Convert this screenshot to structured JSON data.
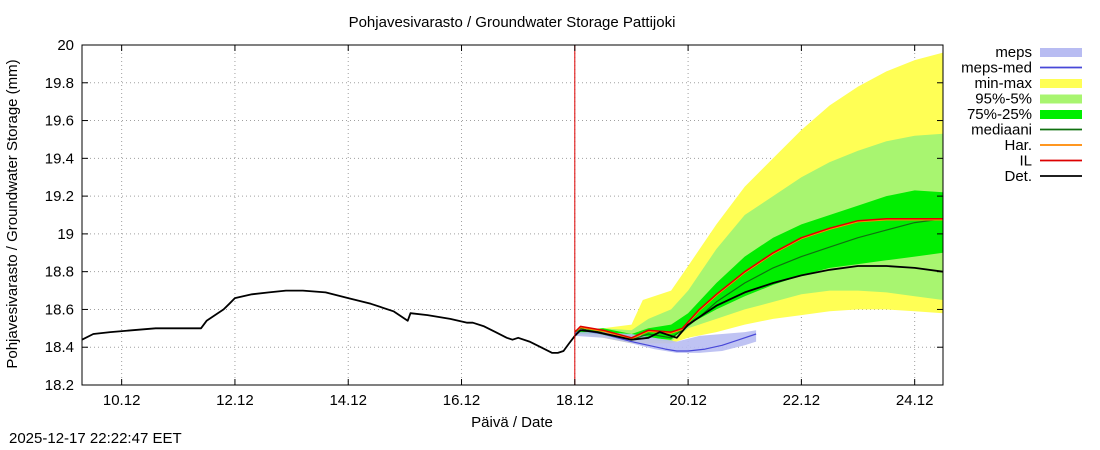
{
  "timestamp": "2025-12-17 22:22:47 EET",
  "chart_data": {
    "type": "line",
    "title": "Pohjavesivarasto / Groundwater Storage   Pattijoki",
    "xlabel": "Päivä / Date",
    "ylabel": "Pohjavesivarasto / Groundwater Storage (mm)",
    "xlim": [
      9.3,
      24.5
    ],
    "ylim": [
      18.2,
      20.0
    ],
    "grid": true,
    "legend_position": "right",
    "forecast_start_day": 18.0,
    "x_ticks": [
      {
        "value": 10,
        "label": "10.12"
      },
      {
        "value": 12,
        "label": "12.12"
      },
      {
        "value": 14,
        "label": "14.12"
      },
      {
        "value": 16,
        "label": "16.12"
      },
      {
        "value": 18,
        "label": "18.12"
      },
      {
        "value": 20,
        "label": "20.12"
      },
      {
        "value": 22,
        "label": "22.12"
      },
      {
        "value": 24,
        "label": "24.12"
      }
    ],
    "y_ticks": [
      {
        "value": 18.2,
        "label": "18.2"
      },
      {
        "value": 18.4,
        "label": "18.4"
      },
      {
        "value": 18.6,
        "label": "18.6"
      },
      {
        "value": 18.8,
        "label": "18.8"
      },
      {
        "value": 19.0,
        "label": "19"
      },
      {
        "value": 19.2,
        "label": "19.2"
      },
      {
        "value": 19.4,
        "label": "19.4"
      },
      {
        "value": 19.6,
        "label": "19.6"
      },
      {
        "value": 19.8,
        "label": "19.8"
      },
      {
        "value": 20.0,
        "label": "20"
      }
    ],
    "legend": [
      {
        "key": "meps",
        "label": "meps",
        "color": "#b8bcf2",
        "kind": "band"
      },
      {
        "key": "meps_med",
        "label": "meps-med",
        "color": "#4848d8",
        "kind": "line"
      },
      {
        "key": "minmax",
        "label": "min-max",
        "color": "#ffff55",
        "kind": "band"
      },
      {
        "key": "p95_5",
        "label": "95%-5%",
        "color": "#a8f570",
        "kind": "band"
      },
      {
        "key": "p75_25",
        "label": "75%-25%",
        "color": "#00ee00",
        "kind": "band"
      },
      {
        "key": "median",
        "label": "mediaani",
        "color": "#107010",
        "kind": "line"
      },
      {
        "key": "har",
        "label": "Har.",
        "color": "#ff8800",
        "kind": "line"
      },
      {
        "key": "il",
        "label": "IL",
        "color": "#dd0000",
        "kind": "line"
      },
      {
        "key": "det",
        "label": "Det.",
        "color": "#000000",
        "kind": "line"
      }
    ],
    "series": {
      "det": {
        "x": [
          9.3,
          9.5,
          9.8,
          10.2,
          10.6,
          11.0,
          11.3,
          11.4,
          11.5,
          11.8,
          11.9,
          12.0,
          12.3,
          12.6,
          12.9,
          13.2,
          13.6,
          14.0,
          14.4,
          14.8,
          15.0,
          15.05,
          15.1,
          15.4,
          15.8,
          16.1,
          16.2,
          16.4,
          16.6,
          16.8,
          16.9,
          17.0,
          17.2,
          17.4,
          17.6,
          17.7,
          17.8,
          17.9,
          18.0,
          18.1,
          18.4,
          18.7,
          19.0,
          19.3,
          19.5,
          19.8,
          20.0,
          20.5,
          21.0,
          21.5,
          22.0,
          22.5,
          23.0,
          23.5,
          24.0,
          24.5
        ],
        "y": [
          18.44,
          18.47,
          18.48,
          18.49,
          18.5,
          18.5,
          18.5,
          18.5,
          18.54,
          18.6,
          18.63,
          18.66,
          18.68,
          18.69,
          18.7,
          18.7,
          18.69,
          18.66,
          18.63,
          18.59,
          18.55,
          18.54,
          18.58,
          18.57,
          18.55,
          18.53,
          18.53,
          18.51,
          18.48,
          18.45,
          18.44,
          18.45,
          18.43,
          18.4,
          18.37,
          18.37,
          18.38,
          18.42,
          18.46,
          18.49,
          18.48,
          18.46,
          18.44,
          18.45,
          18.48,
          18.45,
          18.52,
          18.62,
          18.69,
          18.74,
          18.78,
          18.81,
          18.83,
          18.83,
          18.82,
          18.8
        ]
      },
      "il": {
        "x": [
          18.0,
          18.1,
          18.5,
          19.0,
          19.3,
          19.7,
          19.9,
          20.2,
          20.5,
          21.0,
          21.5,
          22.0,
          22.5,
          23.0,
          23.5,
          24.0,
          24.5
        ],
        "y": [
          18.48,
          18.51,
          18.49,
          18.45,
          18.49,
          18.48,
          18.5,
          18.6,
          18.68,
          18.8,
          18.9,
          18.98,
          19.03,
          19.07,
          19.08,
          19.08,
          19.08
        ]
      },
      "har": {
        "x": [
          18.0,
          18.1,
          18.5,
          19.0,
          19.3,
          19.7,
          19.9,
          20.2,
          20.5,
          21.0,
          21.5,
          22.0,
          22.5,
          23.0,
          23.5,
          24.0,
          24.5
        ],
        "y": [
          18.48,
          18.505,
          18.485,
          18.445,
          18.485,
          18.475,
          18.495,
          18.595,
          18.675,
          18.795,
          18.895,
          18.975,
          19.025,
          19.065,
          19.075,
          19.075,
          19.075
        ]
      },
      "median": {
        "x": [
          18.0,
          18.1,
          18.5,
          19.0,
          19.3,
          19.7,
          19.9,
          20.2,
          20.5,
          21.0,
          21.5,
          22.0,
          22.5,
          23.0,
          23.5,
          24.0,
          24.5
        ],
        "y": [
          18.48,
          18.5,
          18.47,
          18.44,
          18.47,
          18.45,
          18.49,
          18.56,
          18.64,
          18.74,
          18.82,
          18.88,
          18.93,
          18.98,
          19.02,
          19.06,
          19.08
        ]
      },
      "meps_med": {
        "x": [
          18.0,
          18.1,
          18.5,
          19.0,
          19.3,
          19.6,
          19.8,
          20.0,
          20.3,
          20.6,
          20.9,
          21.2
        ],
        "y": [
          18.47,
          18.49,
          18.47,
          18.43,
          18.41,
          18.39,
          18.38,
          18.38,
          18.39,
          18.41,
          18.44,
          18.47
        ]
      }
    },
    "bands": {
      "minmax": {
        "x": [
          18.0,
          18.5,
          19.0,
          19.2,
          19.7,
          20.0,
          20.5,
          21.0,
          21.5,
          22.0,
          22.5,
          23.0,
          23.5,
          24.0,
          24.5
        ],
        "lower": [
          18.47,
          18.45,
          18.42,
          18.42,
          18.42,
          18.45,
          18.48,
          18.52,
          18.55,
          18.57,
          18.59,
          18.6,
          18.6,
          18.59,
          18.58
        ],
        "upper": [
          18.49,
          18.5,
          18.52,
          18.65,
          18.7,
          18.83,
          19.05,
          19.25,
          19.4,
          19.55,
          19.68,
          19.78,
          19.86,
          19.92,
          19.96
        ]
      },
      "p95_5": {
        "x": [
          18.0,
          18.5,
          19.0,
          19.3,
          19.7,
          20.0,
          20.5,
          21.0,
          21.5,
          22.0,
          22.5,
          23.0,
          23.5,
          24.0,
          24.5
        ],
        "lower": [
          18.47,
          18.46,
          18.43,
          18.44,
          18.43,
          18.5,
          18.55,
          18.6,
          18.64,
          18.68,
          18.7,
          18.7,
          18.69,
          18.67,
          18.65
        ],
        "upper": [
          18.49,
          18.5,
          18.49,
          18.55,
          18.6,
          18.7,
          18.92,
          19.1,
          19.2,
          19.3,
          19.38,
          19.44,
          19.49,
          19.52,
          19.53
        ]
      },
      "p75_25": {
        "x": [
          18.0,
          18.5,
          19.0,
          19.3,
          19.7,
          20.0,
          20.5,
          21.0,
          21.5,
          22.0,
          22.5,
          23.0,
          23.5,
          24.0,
          24.5
        ],
        "lower": [
          18.47,
          18.47,
          18.44,
          18.45,
          18.44,
          18.52,
          18.6,
          18.67,
          18.73,
          18.78,
          18.82,
          18.84,
          18.86,
          18.88,
          18.9
        ],
        "upper": [
          18.49,
          18.5,
          18.47,
          18.5,
          18.52,
          18.58,
          18.74,
          18.88,
          18.98,
          19.05,
          19.1,
          19.15,
          19.2,
          19.23,
          19.22
        ]
      },
      "meps": {
        "x": [
          18.0,
          18.5,
          19.0,
          19.4,
          19.8,
          20.2,
          20.6,
          21.0,
          21.2
        ],
        "lower": [
          18.46,
          18.45,
          18.42,
          18.39,
          18.37,
          18.37,
          18.38,
          18.41,
          18.43
        ],
        "upper": [
          18.48,
          18.48,
          18.47,
          18.45,
          18.43,
          18.46,
          18.47,
          18.48,
          18.49
        ]
      }
    }
  }
}
